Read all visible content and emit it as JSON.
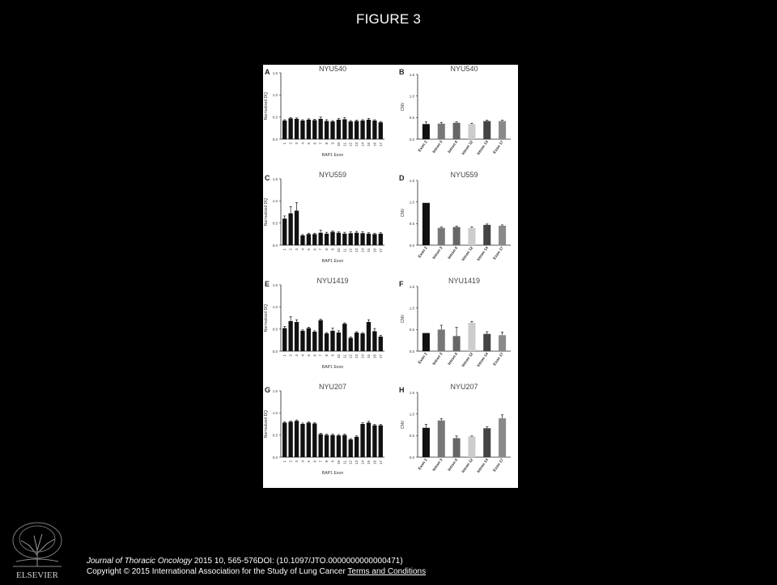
{
  "slide": {
    "title": "FIGURE 3"
  },
  "footer": {
    "journal": "Journal of Thoracic Oncology",
    "citation": " 2015 10, 565-576DOI: (10.1097/JTO.0000000000000471) ",
    "copyright": "Copyright © 2015 International Association for the Study of Lung Cancer",
    "link": "Terms and Conditions"
  },
  "logo": {
    "text": "ELSEVIER"
  },
  "colors": {
    "background": "#000000",
    "panel_bg": "#ffffff",
    "bar_dark": "#111111",
    "cnv_colors": [
      "#111111",
      "#777777",
      "#666666",
      "#cccccc",
      "#444444",
      "#8a8a8a"
    ]
  },
  "chart_data": [
    {
      "panel": "A",
      "type": "bar",
      "title": "NYU540",
      "ylabel": "Normalized DQ",
      "xlabel": "BAP1 Exon",
      "ylim": [
        0,
        1.5
      ],
      "yticks": [
        "0.0",
        "0.5",
        "1.0",
        "1.5"
      ],
      "categories": [
        "1",
        "2",
        "3",
        "4",
        "5",
        "6",
        "7",
        "8",
        "9",
        "10",
        "11",
        "12",
        "13",
        "14",
        "15",
        "16",
        "17"
      ],
      "values": [
        0.42,
        0.47,
        0.46,
        0.42,
        0.44,
        0.43,
        0.46,
        0.41,
        0.4,
        0.44,
        0.45,
        0.4,
        0.41,
        0.42,
        0.44,
        0.42,
        0.38
      ],
      "errors": [
        0.02,
        0.02,
        0.02,
        0.02,
        0.02,
        0.02,
        0.04,
        0.03,
        0.02,
        0.03,
        0.04,
        0.02,
        0.02,
        0.02,
        0.03,
        0.02,
        0.02
      ]
    },
    {
      "panel": "B",
      "type": "bar",
      "title": "NYU540",
      "ylabel": "CNV",
      "xlabel": "",
      "ylim": [
        0,
        1.5
      ],
      "yticks": [
        "0.0",
        "0.5",
        "1.0",
        "1.5"
      ],
      "categories": [
        "Exon 2",
        "Intron 3",
        "Intron 6",
        "Intron 12",
        "Intron 14",
        "Exon 17"
      ],
      "values": [
        0.35,
        0.36,
        0.38,
        0.35,
        0.42,
        0.42
      ],
      "errors": [
        0.05,
        0.03,
        0.02,
        0.02,
        0.02,
        0.02
      ]
    },
    {
      "panel": "C",
      "type": "bar",
      "title": "NYU559",
      "ylabel": "Normalized DQ",
      "xlabel": "BAP1 Exon",
      "ylim": [
        0,
        1.5
      ],
      "yticks": [
        "0.0",
        "0.5",
        "1.0",
        "1.5"
      ],
      "categories": [
        "1",
        "2",
        "3",
        "4",
        "5",
        "6",
        "7",
        "8",
        "9",
        "10",
        "11",
        "12",
        "13",
        "14",
        "15",
        "16",
        "17"
      ],
      "values": [
        0.6,
        0.72,
        0.78,
        0.22,
        0.25,
        0.25,
        0.28,
        0.26,
        0.3,
        0.28,
        0.26,
        0.27,
        0.28,
        0.27,
        0.26,
        0.25,
        0.26
      ],
      "errors": [
        0.06,
        0.15,
        0.18,
        0.02,
        0.02,
        0.02,
        0.06,
        0.03,
        0.02,
        0.02,
        0.03,
        0.03,
        0.03,
        0.03,
        0.02,
        0.02,
        0.02
      ]
    },
    {
      "panel": "D",
      "type": "bar",
      "title": "NYU559",
      "ylabel": "CNV",
      "xlabel": "",
      "ylim": [
        0,
        1.5
      ],
      "yticks": [
        "0.0",
        "0.5",
        "1.0",
        "1.5"
      ],
      "categories": [
        "Exon 2",
        "Intron 3",
        "Intron 6",
        "Intron 12",
        "Intron 14",
        "Exon 17"
      ],
      "values": [
        0.98,
        0.4,
        0.42,
        0.4,
        0.47,
        0.45
      ],
      "errors": [
        0.0,
        0.02,
        0.02,
        0.02,
        0.02,
        0.02
      ]
    },
    {
      "panel": "E",
      "type": "bar",
      "title": "NYU1419",
      "ylabel": "Normalized DQ",
      "xlabel": "BAP1 Exon",
      "ylim": [
        0,
        1.5
      ],
      "yticks": [
        "0.0",
        "0.5",
        "1.0",
        "1.5"
      ],
      "categories": [
        "1",
        "2",
        "3",
        "4",
        "5",
        "6",
        "7",
        "8",
        "9",
        "10",
        "11",
        "12",
        "13",
        "14",
        "15",
        "16",
        "17"
      ],
      "values": [
        0.52,
        0.68,
        0.66,
        0.46,
        0.52,
        0.44,
        0.7,
        0.4,
        0.46,
        0.42,
        0.62,
        0.3,
        0.42,
        0.4,
        0.66,
        0.45,
        0.33
      ],
      "errors": [
        0.04,
        0.1,
        0.05,
        0.02,
        0.02,
        0.02,
        0.02,
        0.02,
        0.06,
        0.04,
        0.02,
        0.02,
        0.02,
        0.02,
        0.05,
        0.06,
        0.03
      ]
    },
    {
      "panel": "F",
      "type": "bar",
      "title": "NYU1419",
      "ylabel": "CNV",
      "xlabel": "",
      "ylim": [
        0,
        1.5
      ],
      "yticks": [
        "0.0",
        "0.5",
        "1.0",
        "1.5"
      ],
      "categories": [
        "Exon 2",
        "Intron 3",
        "Intron 6",
        "Intron 12",
        "Intron 14",
        "Exon 17"
      ],
      "values": [
        0.42,
        0.5,
        0.35,
        0.66,
        0.4,
        0.37
      ],
      "errors": [
        0.0,
        0.1,
        0.2,
        0.03,
        0.05,
        0.07
      ]
    },
    {
      "panel": "G",
      "type": "bar",
      "title": "NYU207",
      "ylabel": "Normalized DQ",
      "xlabel": "BAP1 Exon",
      "ylim": [
        0,
        1.5
      ],
      "yticks": [
        "0.0",
        "0.5",
        "1.0",
        "1.5"
      ],
      "categories": [
        "1",
        "2",
        "3",
        "4",
        "5",
        "6",
        "7",
        "8",
        "9",
        "10",
        "11",
        "12",
        "13",
        "14",
        "15",
        "16",
        "17"
      ],
      "values": [
        0.78,
        0.8,
        0.82,
        0.75,
        0.78,
        0.76,
        0.52,
        0.5,
        0.5,
        0.49,
        0.5,
        0.4,
        0.46,
        0.75,
        0.78,
        0.72,
        0.72
      ],
      "errors": [
        0.02,
        0.02,
        0.02,
        0.02,
        0.02,
        0.02,
        0.02,
        0.02,
        0.02,
        0.02,
        0.02,
        0.02,
        0.02,
        0.03,
        0.03,
        0.02,
        0.02
      ]
    },
    {
      "panel": "H",
      "type": "bar",
      "title": "NYU207",
      "ylabel": "CNV",
      "xlabel": "",
      "ylim": [
        0,
        1.5
      ],
      "yticks": [
        "0.0",
        "0.5",
        "1.0",
        "1.5"
      ],
      "categories": [
        "Exon 2",
        "Intron 3",
        "Intron 6",
        "Intron 12",
        "Intron 14",
        "Exon 17"
      ],
      "values": [
        0.68,
        0.85,
        0.44,
        0.48,
        0.67,
        0.9
      ],
      "errors": [
        0.08,
        0.04,
        0.05,
        0.01,
        0.03,
        0.08
      ]
    }
  ]
}
